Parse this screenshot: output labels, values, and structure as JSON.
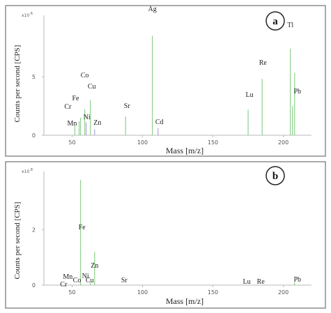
{
  "chart_data": [
    {
      "type": "bar",
      "panel_label": "a",
      "ylabel": "Counts per second [CPS]",
      "xlabel": "Mass [m/z]",
      "y_multiplier": "x10",
      "y_exponent": "6",
      "xlim": [
        30,
        220
      ],
      "ylim": [
        0,
        10
      ],
      "xticks": [
        50,
        100,
        150,
        200
      ],
      "yticks": [
        0,
        5
      ],
      "grid": false,
      "series": [
        {
          "element": "Cr",
          "x": 52,
          "value": 0.8,
          "color": "#8fd08f"
        },
        {
          "element": "Mn",
          "x": 55,
          "value": 1.2,
          "color": "#8fd08f"
        },
        {
          "element": "Fe",
          "x": 56,
          "value": 1.5,
          "color": "#8fd08f"
        },
        {
          "element": "Co",
          "x": 59,
          "value": 2.2,
          "color": "#8fd08f"
        },
        {
          "element": "Ni",
          "x": 60,
          "value": 1.1,
          "color": "#b7a3d9"
        },
        {
          "element": "Cu",
          "x": 63,
          "value": 3.0,
          "color": "#8fd08f"
        },
        {
          "element": "Zn",
          "x": 66,
          "value": 0.5,
          "color": "#b7a3d9"
        },
        {
          "element": "Sr",
          "x": 88,
          "value": 1.6,
          "color": "#8fd08f"
        },
        {
          "element": "Ag",
          "x": 107,
          "value": 8.5,
          "color": "#8fd08f"
        },
        {
          "element": "Cd",
          "x": 111,
          "value": 0.6,
          "color": "#b7a3d9"
        },
        {
          "element": "Lu",
          "x": 175,
          "value": 2.2,
          "color": "#8fd08f"
        },
        {
          "element": "Re",
          "x": 185,
          "value": 4.8,
          "color": "#8fd08f"
        },
        {
          "element": "Tl",
          "x": 205,
          "value": 7.4,
          "color": "#8fd08f"
        },
        {
          "element": "Pb",
          "x": 206.5,
          "value": 2.5,
          "color": "#8fd08f"
        },
        {
          "element": "Pb",
          "x": 208,
          "value": 5.3,
          "color": "#8fd08f"
        }
      ],
      "labels": [
        {
          "text": "Cr",
          "x": 47,
          "y": 3.8
        },
        {
          "text": "Mn",
          "x": 50,
          "y": 1.4
        },
        {
          "text": "Fe",
          "x": 52.5,
          "y": 5.0
        },
        {
          "text": "Co",
          "x": 59,
          "y": 8.3
        },
        {
          "text": "Ni",
          "x": 60.5,
          "y": 2.3
        },
        {
          "text": "Cu",
          "x": 64,
          "y": 6.7
        },
        {
          "text": "Zn",
          "x": 68,
          "y": 1.5
        },
        {
          "text": "Sr",
          "x": 89,
          "y": 3.9
        },
        {
          "text": "Ag",
          "x": 107,
          "y": 17.8
        },
        {
          "text": "Cd",
          "x": 112,
          "y": 1.6
        },
        {
          "text": "Lu",
          "x": 176,
          "y": 5.5
        },
        {
          "text": "Re",
          "x": 185.5,
          "y": 10.1
        },
        {
          "text": "Tl",
          "x": 205,
          "y": 15.5
        },
        {
          "text": "Pb",
          "x": 210,
          "y": 6.0
        }
      ]
    },
    {
      "type": "bar",
      "panel_label": "b",
      "ylabel": "Counts per second [CPS]",
      "xlabel": "Mass [m/z]",
      "y_multiplier": "x10",
      "y_exponent": "8",
      "xlim": [
        30,
        220
      ],
      "ylim": [
        0,
        4
      ],
      "xticks": [
        50,
        100,
        150,
        200
      ],
      "yticks": [
        0,
        2
      ],
      "grid": false,
      "series": [
        {
          "element": "Fe",
          "x": 56,
          "value": 3.8,
          "color": "#8fd08f"
        },
        {
          "element": "Zn",
          "x": 66,
          "value": 1.2,
          "color": "#8fd08f"
        },
        {
          "element": "Cu",
          "x": 63,
          "value": 0.1,
          "color": "#8fd08f"
        },
        {
          "element": "Pb",
          "x": 208,
          "value": 0.1,
          "color": "#8fd08f"
        }
      ],
      "labels": [
        {
          "text": "Fe",
          "x": 57,
          "y": 8.0
        },
        {
          "text": "Zn",
          "x": 66,
          "y": 2.5
        },
        {
          "text": "Mn",
          "x": 47,
          "y": 0.9
        },
        {
          "text": "Co",
          "x": 53.5,
          "y": 0.4
        },
        {
          "text": "Ni",
          "x": 59.5,
          "y": 1.0
        },
        {
          "text": "Cu",
          "x": 62.5,
          "y": 0.4
        },
        {
          "text": "Cr",
          "x": 44,
          "y": -0.2
        },
        {
          "text": "Sr",
          "x": 87,
          "y": 0.4
        },
        {
          "text": "Lu",
          "x": 174,
          "y": 0.2
        },
        {
          "text": "Re",
          "x": 184,
          "y": 0.2
        },
        {
          "text": "Pb",
          "x": 210,
          "y": 0.5
        }
      ]
    }
  ]
}
